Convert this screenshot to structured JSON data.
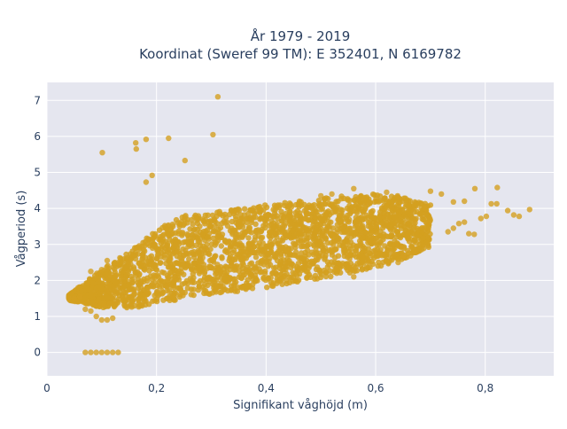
{
  "chart_data": {
    "type": "scatter",
    "title_line1": "År 1979 - 2019",
    "title_line2": "Koordinat (Sweref 99 TM): E 352401, N 6169782",
    "xlabel": "Signifikant våghöjd (m)",
    "ylabel": "Vågperiod (s)",
    "xlim": [
      0,
      0.925
    ],
    "ylim": [
      -0.65,
      7.5
    ],
    "x_ticks": [
      0,
      0.2,
      0.4,
      0.6,
      0.8
    ],
    "x_tick_labels": [
      "0",
      "0,2",
      "0,4",
      "0,6",
      "0,8"
    ],
    "y_ticks": [
      0,
      1,
      2,
      3,
      4,
      5,
      6,
      7
    ],
    "y_tick_labels": [
      "0",
      "1",
      "2",
      "3",
      "4",
      "5",
      "6",
      "7"
    ],
    "grid": true,
    "legend": "none",
    "colors": {
      "marker": "#d4a020",
      "plot_bg": "#e5e6ef",
      "grid": "#ffffff",
      "text": "#2a3f5f"
    },
    "cloud_envelope": {
      "description_x": "height (m)",
      "x": [
        0.04,
        0.1,
        0.15,
        0.2,
        0.25,
        0.3,
        0.35,
        0.4,
        0.45,
        0.5,
        0.55,
        0.6,
        0.65,
        0.7
      ],
      "y_low": [
        1.45,
        1.25,
        1.2,
        1.35,
        1.5,
        1.6,
        1.7,
        1.8,
        1.95,
        2.05,
        2.2,
        2.35,
        2.6,
        2.9
      ],
      "y_high": [
        1.6,
        2.3,
        2.8,
        3.4,
        3.8,
        3.9,
        4.0,
        4.1,
        4.2,
        4.3,
        4.35,
        4.4,
        4.3,
        4.1
      ]
    },
    "points": [
      {
        "x": 0.312,
        "y": 7.1
      },
      {
        "x": 0.303,
        "y": 6.05
      },
      {
        "x": 0.222,
        "y": 5.95
      },
      {
        "x": 0.181,
        "y": 5.92
      },
      {
        "x": 0.162,
        "y": 5.82
      },
      {
        "x": 0.163,
        "y": 5.65
      },
      {
        "x": 0.101,
        "y": 5.55
      },
      {
        "x": 0.252,
        "y": 5.33
      },
      {
        "x": 0.192,
        "y": 4.92
      },
      {
        "x": 0.181,
        "y": 4.73
      },
      {
        "x": 0.07,
        "y": 0
      },
      {
        "x": 0.08,
        "y": 0
      },
      {
        "x": 0.09,
        "y": 0
      },
      {
        "x": 0.1,
        "y": 0
      },
      {
        "x": 0.11,
        "y": 0
      },
      {
        "x": 0.12,
        "y": 0
      },
      {
        "x": 0.13,
        "y": 0
      },
      {
        "x": 0.04,
        "y": 1.5
      },
      {
        "x": 0.05,
        "y": 1.5
      },
      {
        "x": 0.06,
        "y": 1.55
      },
      {
        "x": 0.07,
        "y": 1.2
      },
      {
        "x": 0.08,
        "y": 1.15
      },
      {
        "x": 0.09,
        "y": 1.0
      },
      {
        "x": 0.1,
        "y": 0.9
      },
      {
        "x": 0.11,
        "y": 0.9
      },
      {
        "x": 0.12,
        "y": 0.95
      },
      {
        "x": 0.08,
        "y": 2.25
      },
      {
        "x": 0.1,
        "y": 2.3
      },
      {
        "x": 0.11,
        "y": 2.55
      },
      {
        "x": 0.881,
        "y": 3.97
      },
      {
        "x": 0.862,
        "y": 3.78
      },
      {
        "x": 0.852,
        "y": 3.82
      },
      {
        "x": 0.841,
        "y": 3.94
      },
      {
        "x": 0.822,
        "y": 4.58
      },
      {
        "x": 0.821,
        "y": 4.13
      },
      {
        "x": 0.811,
        "y": 4.13
      },
      {
        "x": 0.802,
        "y": 3.78
      },
      {
        "x": 0.792,
        "y": 3.72
      },
      {
        "x": 0.78,
        "y": 3.28
      },
      {
        "x": 0.77,
        "y": 3.3
      },
      {
        "x": 0.762,
        "y": 3.62
      },
      {
        "x": 0.752,
        "y": 3.58
      },
      {
        "x": 0.742,
        "y": 3.45
      },
      {
        "x": 0.732,
        "y": 3.35
      },
      {
        "x": 0.781,
        "y": 4.55
      },
      {
        "x": 0.762,
        "y": 4.2
      },
      {
        "x": 0.742,
        "y": 4.18
      },
      {
        "x": 0.72,
        "y": 4.4
      },
      {
        "x": 0.7,
        "y": 4.48
      },
      {
        "x": 0.69,
        "y": 4.0
      },
      {
        "x": 0.672,
        "y": 3.6
      },
      {
        "x": 0.651,
        "y": 2.7
      },
      {
        "x": 0.641,
        "y": 2.5
      },
      {
        "x": 0.6,
        "y": 3.05
      },
      {
        "x": 0.55,
        "y": 2.7
      },
      {
        "x": 0.56,
        "y": 2.1
      },
      {
        "x": 0.5,
        "y": 4.35
      },
      {
        "x": 0.52,
        "y": 4.4
      },
      {
        "x": 0.56,
        "y": 4.55
      },
      {
        "x": 0.62,
        "y": 4.45
      },
      {
        "x": 0.64,
        "y": 4.35
      },
      {
        "x": 0.58,
        "y": 4.3
      }
    ]
  }
}
